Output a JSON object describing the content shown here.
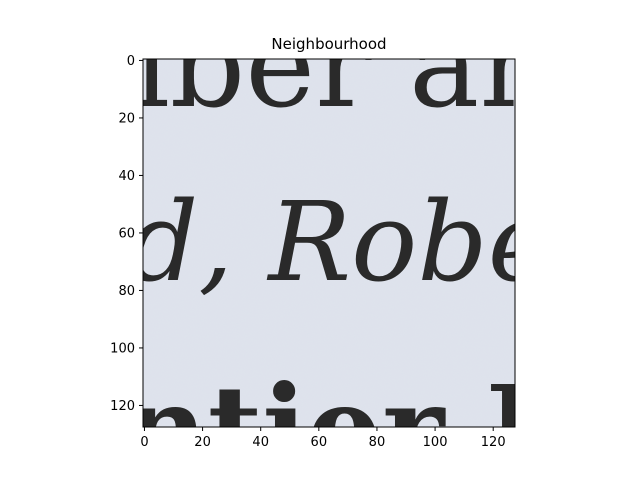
{
  "chart_data": {
    "type": "heatmap",
    "title": "Neighbourhood",
    "xlabel": "",
    "ylabel": "",
    "xlim": [
      -0.5,
      127.5
    ],
    "ylim": [
      127.5,
      -0.5
    ],
    "y_inverted": true,
    "grid": false,
    "legend": "none",
    "x_ticks": [
      0,
      20,
      40,
      60,
      80,
      100,
      120
    ],
    "y_ticks": [
      0,
      20,
      40,
      60,
      80,
      100,
      120
    ],
    "image_content": {
      "description_lines": [
        "iber an",
        "d, Rober",
        "ntier B"
      ]
    },
    "colors": {
      "background": "#dde2ec",
      "ink": "#2a2a2a",
      "axis": "#000000"
    }
  }
}
